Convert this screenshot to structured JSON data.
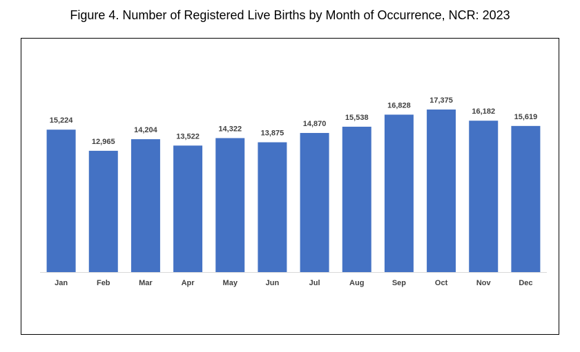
{
  "title": "Figure 4. Number of Registered Live Births by Month of Occurrence, NCR: 2023",
  "colors": {
    "bar": "#4472C4",
    "axis": "#D9D9D9",
    "label": "#404040"
  },
  "chart_data": {
    "type": "bar",
    "title": "Figure 4. Number of Registered Live Births by Month of Occurrence, NCR: 2023",
    "categories": [
      "Jan",
      "Feb",
      "Mar",
      "Apr",
      "May",
      "Jun",
      "Jul",
      "Aug",
      "Sep",
      "Oct",
      "Nov",
      "Dec"
    ],
    "values": [
      15224,
      12965,
      14204,
      13522,
      14322,
      13875,
      14870,
      15538,
      16828,
      17375,
      16182,
      15619
    ],
    "data_labels": [
      "15,224",
      "12,965",
      "14,204",
      "13,522",
      "14,322",
      "13,875",
      "14,870",
      "15,538",
      "16,828",
      "17,375",
      "16,182",
      "15,619"
    ],
    "xlabel": "",
    "ylabel": "",
    "ylim": [
      0,
      19000
    ],
    "grid": false,
    "legend": "none"
  }
}
